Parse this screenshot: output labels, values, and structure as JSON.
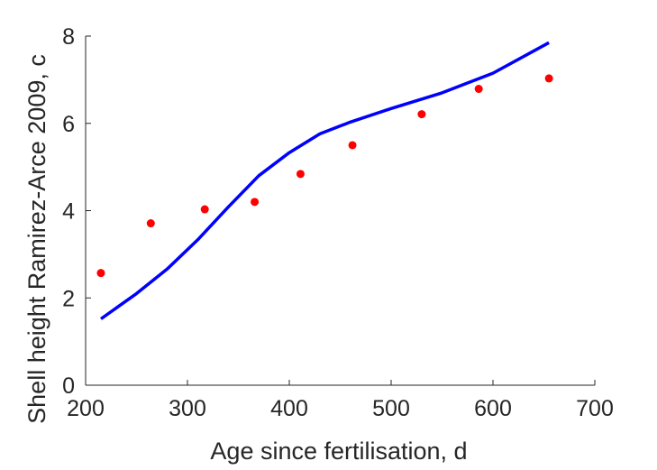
{
  "chart_data": {
    "type": "scatter",
    "xlabel": "Age since fertilisation, d",
    "ylabel": "Shell height Ramirez-Arce 2009, c",
    "xlim": [
      200,
      700
    ],
    "ylim": [
      0,
      8
    ],
    "xticks": [
      200,
      300,
      400,
      500,
      600,
      700
    ],
    "yticks": [
      0,
      2,
      4,
      6,
      8
    ],
    "grid": false,
    "series": [
      {
        "kind": "points",
        "color": "#ff0000",
        "x": [
          215,
          264,
          317,
          366,
          411,
          462,
          530,
          586,
          655
        ],
        "y": [
          2.57,
          3.71,
          4.03,
          4.2,
          4.84,
          5.5,
          6.21,
          6.79,
          7.03
        ]
      },
      {
        "kind": "line",
        "color": "#0000ff",
        "x": [
          215,
          250,
          280,
          310,
          340,
          370,
          400,
          430,
          460,
          500,
          550,
          600,
          655
        ],
        "y": [
          1.52,
          2.1,
          2.66,
          3.33,
          4.08,
          4.8,
          5.33,
          5.76,
          6.03,
          6.34,
          6.7,
          7.15,
          7.85
        ]
      }
    ]
  }
}
